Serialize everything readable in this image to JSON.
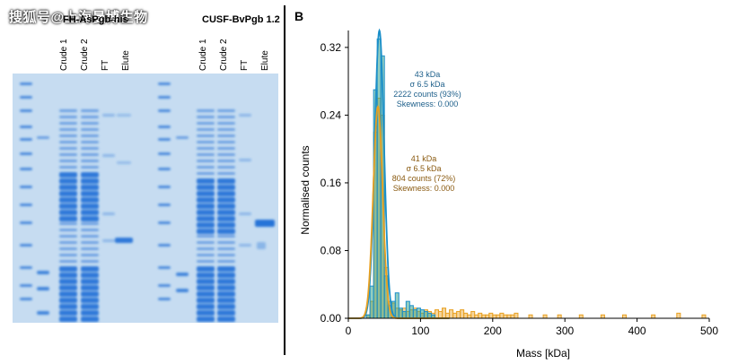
{
  "watermark": "搜狐号@上海曼博生物",
  "gel": {
    "left_title": "FH-AsPgb-his",
    "right_title": "CUSF-BvPgb 1.2",
    "left_lanes": [
      "Crude 1",
      "Crude 2",
      "FT",
      "Elute"
    ],
    "right_lanes": [
      "Crude 1",
      "Crude 2",
      "FT",
      "Elute"
    ],
    "background_color": "#c6dcf1",
    "band_color": "#1f6fd6"
  },
  "panel_label": "B",
  "chart_data": {
    "type": "histogram",
    "xlabel": "Mass [kDa]",
    "ylabel": "Normalised counts",
    "xlim": [
      0,
      500
    ],
    "ylim": [
      0,
      0.34
    ],
    "xticks": [
      0,
      100,
      200,
      300,
      400,
      500
    ],
    "yticks": [
      0,
      0.08,
      0.16,
      0.24,
      0.32
    ],
    "ytick_labels": [
      "0.00",
      "0.08",
      "0.16",
      "0.24",
      "0.32"
    ],
    "bin_width": 5,
    "series": [
      {
        "color": "#1b8fc9",
        "fill": "#3aa58c",
        "bins_x": [
          25,
          30,
          35,
          40,
          45,
          50,
          55,
          60,
          65,
          70,
          75,
          80,
          85,
          90,
          95,
          100,
          105,
          110,
          115
        ],
        "counts": [
          0.004,
          0.038,
          0.27,
          0.33,
          0.31,
          0.05,
          0.015,
          0.02,
          0.03,
          0.012,
          0.008,
          0.02,
          0.015,
          0.01,
          0.012,
          0.01,
          0.008,
          0.006,
          0.004
        ],
        "fit_mean": 43,
        "fit_sigma": 6.5,
        "fit_peak": 0.34,
        "annotations": [
          "43 kDa",
          "σ 6.5 kDa",
          "2222 counts (93%)",
          "Skewness: 0.000"
        ]
      },
      {
        "color": "#e8a020",
        "fill": "#e8a020",
        "bins_x": [
          25,
          30,
          35,
          40,
          45,
          50,
          55,
          60,
          65,
          70,
          75,
          80,
          85,
          90,
          95,
          100,
          105,
          110,
          115,
          120,
          125,
          130,
          135,
          140,
          145,
          150,
          155,
          160,
          165,
          170,
          175,
          180,
          185,
          190,
          195,
          200,
          205,
          210,
          215,
          220,
          225,
          230,
          250,
          270,
          290,
          320,
          350,
          380,
          420,
          455,
          490
        ],
        "counts": [
          0.004,
          0.02,
          0.22,
          0.26,
          0.24,
          0.06,
          0.02,
          0.018,
          0.012,
          0.01,
          0.012,
          0.008,
          0.01,
          0.012,
          0.008,
          0.006,
          0.01,
          0.008,
          0.006,
          0.01,
          0.008,
          0.012,
          0.006,
          0.01,
          0.006,
          0.008,
          0.01,
          0.006,
          0.004,
          0.008,
          0.004,
          0.006,
          0.004,
          0.004,
          0.006,
          0.004,
          0.004,
          0.006,
          0.004,
          0.004,
          0.004,
          0.006,
          0.004,
          0.004,
          0.004,
          0.004,
          0.004,
          0.004,
          0.004,
          0.006,
          0.004
        ],
        "fit_mean": 41,
        "fit_sigma": 6.5,
        "fit_peak": 0.25,
        "annotations": [
          "41 kDa",
          "σ 6.5 kDa",
          "804 counts (72%)",
          "Skewness: 0.000"
        ]
      }
    ]
  }
}
